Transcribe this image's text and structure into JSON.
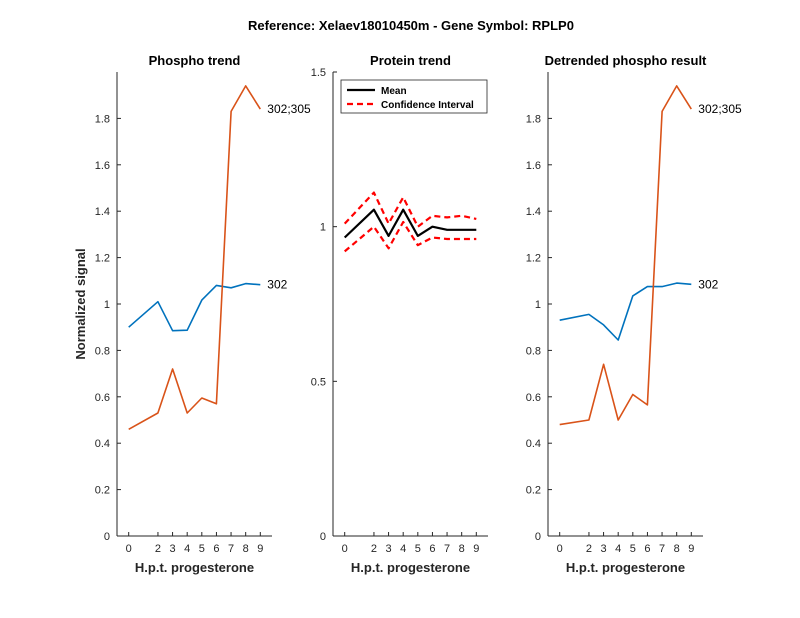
{
  "figure": {
    "suptitle": "Reference:  Xelaev18010450m - Gene Symbol:  RPLP0"
  },
  "chart_data": [
    {
      "type": "line",
      "title": "Phospho trend",
      "xlabel": "H.p.t. progesterone",
      "ylabel": "Normalized signal",
      "x": [
        0,
        2,
        3,
        4,
        5,
        6,
        7,
        8,
        9
      ],
      "xticks": [
        "0",
        "2",
        "3",
        "4",
        "5",
        "6",
        "7",
        "8",
        "9"
      ],
      "ylim": [
        0,
        2
      ],
      "yticks": [
        "0",
        "0.2",
        "0.4",
        "0.6",
        "0.8",
        "1",
        "1.2",
        "1.4",
        "1.6",
        "1.8"
      ],
      "series": [
        {
          "name": "302",
          "color": "#0072BD",
          "values": [
            0.9,
            1.01,
            0.885,
            0.887,
            1.017,
            1.08,
            1.07,
            1.088,
            1.083
          ]
        },
        {
          "name": "302;305",
          "color": "#D95319",
          "values": [
            0.46,
            0.53,
            0.72,
            0.53,
            0.595,
            0.57,
            1.83,
            1.94,
            1.84
          ]
        }
      ]
    },
    {
      "type": "line",
      "title": "Protein trend",
      "xlabel": "H.p.t. progesterone",
      "ylabel": "",
      "x": [
        0,
        2,
        3,
        4,
        5,
        6,
        7,
        8,
        9
      ],
      "xticks": [
        "0",
        "2",
        "3",
        "4",
        "5",
        "6",
        "7",
        "8",
        "9"
      ],
      "ylim": [
        0,
        1.5
      ],
      "yticks": [
        "0",
        "0.5",
        "1",
        "1.5"
      ],
      "legend": {
        "position": "top-left",
        "entries": [
          "Mean",
          "Confidence Interval"
        ]
      },
      "series": [
        {
          "name": "Mean",
          "color": "#000000",
          "style": "solid",
          "values": [
            0.965,
            1.055,
            0.97,
            1.055,
            0.97,
            1.0,
            0.99,
            0.99,
            0.99
          ]
        },
        {
          "name": "Confidence Interval",
          "color": "#FF0000",
          "style": "dashed",
          "values": [
            1.01,
            1.11,
            1.01,
            1.095,
            1.0,
            1.035,
            1.03,
            1.035,
            1.025
          ]
        },
        {
          "name": "Confidence Interval",
          "color": "#FF0000",
          "style": "dashed",
          "values": [
            0.92,
            1.0,
            0.93,
            1.015,
            0.94,
            0.965,
            0.96,
            0.96,
            0.96
          ]
        }
      ]
    },
    {
      "type": "line",
      "title": "Detrended phospho result",
      "xlabel": "H.p.t. progesterone",
      "ylabel": "",
      "x": [
        0,
        2,
        3,
        4,
        5,
        6,
        7,
        8,
        9
      ],
      "xticks": [
        "0",
        "2",
        "3",
        "4",
        "5",
        "6",
        "7",
        "8",
        "9"
      ],
      "ylim": [
        0,
        2
      ],
      "yticks": [
        "0",
        "0.2",
        "0.4",
        "0.6",
        "0.8",
        "1",
        "1.2",
        "1.4",
        "1.6",
        "1.8"
      ],
      "series": [
        {
          "name": "302",
          "color": "#0072BD",
          "values": [
            0.93,
            0.955,
            0.91,
            0.845,
            1.035,
            1.075,
            1.075,
            1.09,
            1.085
          ]
        },
        {
          "name": "302;305",
          "color": "#D95319",
          "values": [
            0.48,
            0.5,
            0.74,
            0.5,
            0.61,
            0.565,
            1.83,
            1.94,
            1.84
          ]
        }
      ]
    }
  ]
}
